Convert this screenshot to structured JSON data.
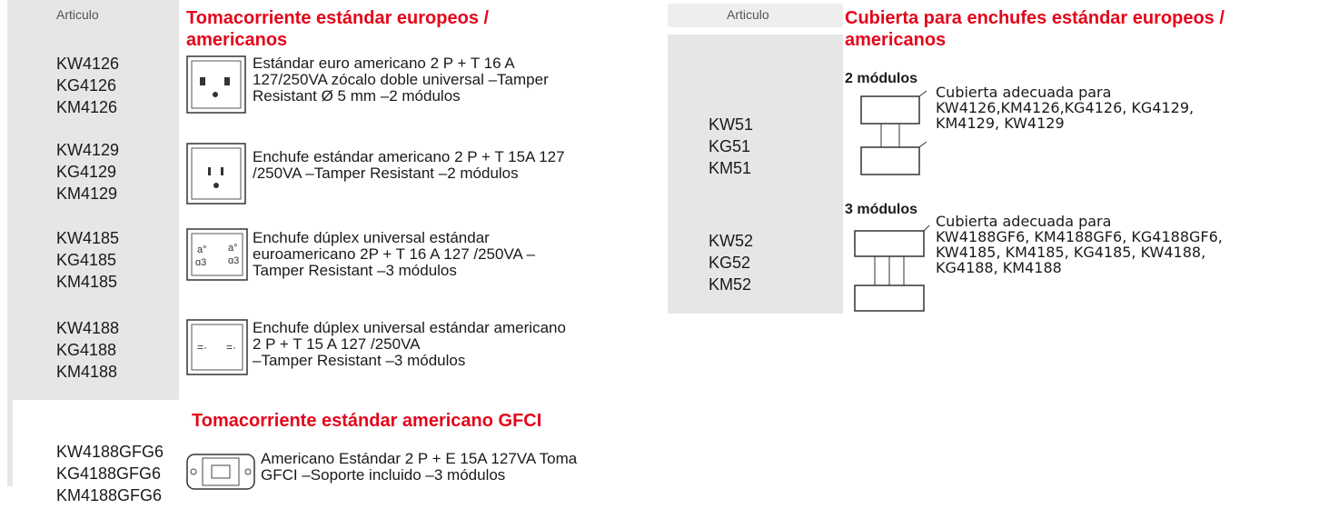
{
  "left": {
    "column_header": "Articulo",
    "sections": [
      {
        "title": [
          "Tomacorriente estándar europeos /",
          "americanos"
        ],
        "items": [
          {
            "codes": [
              "KW4126",
              "KG4126",
              "KM4126"
            ],
            "description": [
              "Estándar euro americano 2 P + T 16 A",
              "127/250VA zócalo doble universal –Tamper",
              "Resistant  Ø 5 mm –2 módulos"
            ]
          },
          {
            "codes": [
              "KW4129",
              "KG4129",
              "KM4129"
            ],
            "description": [
              "Enchufe estándar americano 2 P + T 15A 127",
              "/250VA –Tamper Resistant  –2 módulos"
            ]
          },
          {
            "codes": [
              "KW4185",
              "KG4185",
              "KM4185"
            ],
            "description": [
              "Enchufe dúplex universal estándar",
              "euroamericano  2P + T 16 A 127 /250VA –",
              "Tamper Resistant  –3 módulos"
            ]
          },
          {
            "codes": [
              "KW4188",
              "KG4188",
              "KM4188"
            ],
            "description": [
              "Enchufe dúplex universal estándar americano",
              "2 P + T 15 A 127 /250VA",
              "–Tamper  Resistant  –3 módulos"
            ]
          }
        ]
      },
      {
        "title": [
          "Tomacorriente estándar americano GFCI"
        ],
        "items": [
          {
            "codes": [
              "KW4188GFG6",
              "KG4188GFG6",
              "KM4188GFG6"
            ],
            "description": [
              "Americano Estándar  2 P + E  15A 127VA Toma",
              "GFCI  –Soporte incluido –3 módulos"
            ]
          }
        ]
      }
    ]
  },
  "right": {
    "column_header": "Articulo",
    "title": [
      "Cubierta para enchufes estándar europeos /",
      "americanos"
    ],
    "groups": [
      {
        "label": "2 módulos",
        "codes": [
          "KW51",
          "KG51",
          "KM51"
        ],
        "description": [
          "Cubierta adecuada  para",
          "KW4126,KM4126,KG4126, KG4129,",
          "KM4129, KW4129"
        ]
      },
      {
        "label": "3 módulos",
        "codes": [
          "KW52",
          "KG52",
          "KM52"
        ],
        "description": [
          "Cubierta adecuada  para",
          "KW4188GF6,  KM4188GF6,  KG4188GF6,",
          "KW4185,  KM4185,  KG4185, KW4188,",
          "KG4188,  KM4188"
        ]
      }
    ]
  }
}
